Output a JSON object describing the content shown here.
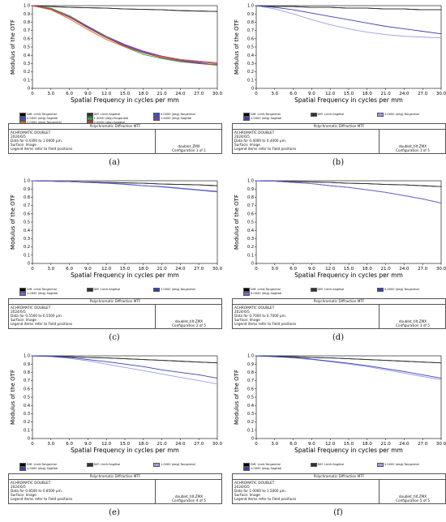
{
  "chart_data": [
    {
      "type": "line",
      "caption": "(a)",
      "xlabel": "Spatial Frequency in cycles per mm",
      "ylabel": "Modulus of the OTF",
      "xlim": [
        0,
        30
      ],
      "ylim": [
        0,
        1
      ],
      "xticks": [
        "0",
        "3.0",
        "6.0",
        "9.0",
        "12.0",
        "15.0",
        "18.0",
        "21.0",
        "24.0",
        "27.0",
        "30.0"
      ],
      "yticks": [
        "0",
        "0.1",
        "0.2",
        "0.3",
        "0.4",
        "0.5",
        "0.6",
        "0.7",
        "0.8",
        "0.9",
        "1.0"
      ],
      "x": [
        0,
        3,
        6,
        9,
        12,
        15,
        18,
        21,
        24,
        27,
        30
      ],
      "series": [
        {
          "name": "Diff. Limit-Tangential",
          "color": "#000000",
          "values": [
            1.0,
            0.99,
            0.98,
            0.975,
            0.97,
            0.96,
            0.955,
            0.95,
            0.94,
            0.935,
            0.93
          ]
        },
        {
          "name": "Diff. Limit-Sagittal",
          "color": "#333333",
          "values": [
            1.0,
            0.99,
            0.98,
            0.975,
            0.97,
            0.96,
            0.955,
            0.95,
            0.94,
            0.935,
            0.93
          ]
        },
        {
          "name": "0.0000 (deg)-Tangential",
          "color": "#3b4fd1",
          "values": [
            1.0,
            0.96,
            0.86,
            0.74,
            0.62,
            0.52,
            0.44,
            0.38,
            0.34,
            0.31,
            0.28
          ]
        },
        {
          "name": "0.0000 (deg)-Sagittal",
          "color": "#3b4fd1",
          "values": [
            1.0,
            0.96,
            0.86,
            0.74,
            0.62,
            0.52,
            0.44,
            0.38,
            0.34,
            0.31,
            0.28
          ]
        },
        {
          "name": "1.4000 (deg)-Tangential",
          "color": "#2fa24a",
          "values": [
            1.0,
            0.97,
            0.88,
            0.75,
            0.62,
            0.5,
            0.41,
            0.36,
            0.32,
            0.3,
            0.29
          ]
        },
        {
          "name": "1.4000 (deg)-Sagittal",
          "color": "#7b3fb0",
          "values": [
            1.0,
            0.96,
            0.87,
            0.75,
            0.63,
            0.53,
            0.45,
            0.39,
            0.35,
            0.32,
            0.3
          ]
        },
        {
          "name": "2.0000 (deg)-Tangential",
          "color": "#e0681a",
          "values": [
            1.0,
            0.95,
            0.84,
            0.71,
            0.59,
            0.5,
            0.43,
            0.38,
            0.35,
            0.33,
            0.31
          ]
        },
        {
          "name": "2.0000 (deg)-Sagittal",
          "color": "#c63a2f",
          "values": [
            1.0,
            0.96,
            0.86,
            0.73,
            0.61,
            0.51,
            0.43,
            0.37,
            0.33,
            0.3,
            0.28
          ]
        }
      ],
      "info": {
        "title": "Polychromatic Diffraction MTF",
        "lines": [
          "ACHROMATIC DOUBLET",
          "2024/6/5",
          "Data for 0.4300 to 1.0000 µm.",
          "Surface: Image"
        ],
        "legend_note": "Legend items refer to Field positions",
        "file": "doublet_ZMX",
        "config": "Configuration 1 of 1"
      }
    },
    {
      "type": "line",
      "caption": "(b)",
      "xlabel": "Spatial Frequency in cycles per mm",
      "ylabel": "Modulus of the OTF",
      "xlim": [
        0,
        30
      ],
      "ylim": [
        0,
        1
      ],
      "xticks": [
        "0",
        "3.0",
        "6.0",
        "9.0",
        "12.0",
        "15.0",
        "18.0",
        "21.0",
        "24.0",
        "27.0",
        "30.0"
      ],
      "yticks": [
        "0",
        "0.1",
        "0.2",
        "0.3",
        "0.4",
        "0.5",
        "0.6",
        "0.7",
        "0.8",
        "0.9",
        "1.0"
      ],
      "x": [
        0,
        3,
        6,
        9,
        12,
        15,
        18,
        21,
        24,
        27,
        30
      ],
      "series": [
        {
          "name": "Diff. Limit-Tangential",
          "color": "#000000",
          "values": [
            1.0,
            0.99,
            0.99,
            0.98,
            0.98,
            0.97,
            0.97,
            0.96,
            0.96,
            0.95,
            0.95
          ]
        },
        {
          "name": "Diff. Limit-Sagittal",
          "color": "#333333",
          "values": [
            1.0,
            0.99,
            0.99,
            0.98,
            0.98,
            0.97,
            0.97,
            0.96,
            0.96,
            0.95,
            0.95
          ]
        },
        {
          "name": "2.0000 (deg)-Tangential",
          "color": "#9a9ce8",
          "values": [
            1.0,
            0.96,
            0.9,
            0.83,
            0.77,
            0.72,
            0.68,
            0.65,
            0.63,
            0.62,
            0.61
          ]
        },
        {
          "name": "2.0000 (deg)-Sagittal",
          "color": "#3b3fb0",
          "values": [
            1.0,
            0.98,
            0.95,
            0.91,
            0.87,
            0.83,
            0.79,
            0.75,
            0.72,
            0.69,
            0.66
          ]
        }
      ],
      "info": {
        "title": "Polychromatic Diffraction MTF",
        "lines": [
          "ACHROMATIC DOUBLET",
          "2024/6/5",
          "Data for 0.4000 to 0.4000 µm.",
          "Surface: Image"
        ],
        "legend_note": "Legend items refer to Field positions",
        "file": "doublet_tilt.ZMX",
        "config": "Configuration 1 of 5"
      }
    },
    {
      "type": "line",
      "caption": "(c)",
      "xlabel": "Spatial Frequency in cycles per mm",
      "ylabel": "Modulus of the OTF",
      "xlim": [
        0,
        30
      ],
      "ylim": [
        0,
        1
      ],
      "xticks": [
        "0",
        "3.0",
        "6.0",
        "9.0",
        "12.0",
        "15.0",
        "18.0",
        "21.0",
        "24.0",
        "27.0",
        "30.0"
      ],
      "yticks": [
        "0",
        "0.1",
        "0.2",
        "0.3",
        "0.4",
        "0.5",
        "0.6",
        "0.7",
        "0.8",
        "0.9",
        "1.0"
      ],
      "x": [
        0,
        3,
        6,
        9,
        12,
        15,
        18,
        21,
        24,
        27,
        30
      ],
      "series": [
        {
          "name": "Diff. Limit-Tangential",
          "color": "#000000",
          "values": [
            1.0,
            0.995,
            0.99,
            0.985,
            0.98,
            0.975,
            0.97,
            0.96,
            0.955,
            0.95,
            0.94
          ]
        },
        {
          "name": "Diff. Limit-Sagittal",
          "color": "#333333",
          "values": [
            1.0,
            0.995,
            0.99,
            0.985,
            0.98,
            0.975,
            0.97,
            0.96,
            0.955,
            0.95,
            0.94
          ]
        },
        {
          "name": "1.0000 (deg)-Tangential",
          "color": "#3b3fb0",
          "values": [
            1.0,
            0.995,
            0.99,
            0.98,
            0.97,
            0.96,
            0.94,
            0.93,
            0.91,
            0.89,
            0.87
          ]
        },
        {
          "name": "1.0000 (deg)-Sagittal",
          "color": "#6a6ad6",
          "values": [
            1.0,
            0.995,
            0.99,
            0.98,
            0.97,
            0.955,
            0.94,
            0.925,
            0.905,
            0.885,
            0.865
          ]
        }
      ],
      "info": {
        "title": "Polychromatic Diffraction MTF",
        "lines": [
          "ACHROMATIC DOUBLET",
          "2024/6/5",
          "Data for 0.5500 to 0.5500 µm.",
          "Surface: Image"
        ],
        "legend_note": "Legend items refer to Field positions",
        "file": "doublet_tilt.ZMX",
        "config": "Configuration 2 of 5"
      }
    },
    {
      "type": "line",
      "caption": "(d)",
      "xlabel": "Spatial Frequency in cycles per mm",
      "ylabel": "Modulus of the OTF",
      "xlim": [
        0,
        30
      ],
      "ylim": [
        0,
        1
      ],
      "xticks": [
        "0",
        "3.0",
        "6.0",
        "9.0",
        "12.0",
        "15.0",
        "18.0",
        "21.0",
        "24.0",
        "27.0",
        "30.0"
      ],
      "yticks": [
        "0",
        "0.1",
        "0.2",
        "0.3",
        "0.4",
        "0.5",
        "0.6",
        "0.7",
        "0.8",
        "0.9",
        "1.0"
      ],
      "x": [
        0,
        3,
        6,
        9,
        12,
        15,
        18,
        21,
        24,
        27,
        30
      ],
      "series": [
        {
          "name": "Diff. Limit-Tangential",
          "color": "#000000",
          "values": [
            1.0,
            0.995,
            0.99,
            0.985,
            0.98,
            0.97,
            0.965,
            0.955,
            0.95,
            0.94,
            0.93
          ]
        },
        {
          "name": "Diff. Limit-Sagittal",
          "color": "#333333",
          "values": [
            1.0,
            0.995,
            0.99,
            0.985,
            0.98,
            0.97,
            0.965,
            0.955,
            0.95,
            0.94,
            0.93
          ]
        },
        {
          "name": "0.0000 (deg)-Tangential",
          "color": "#3b3fb0",
          "values": [
            1.0,
            0.995,
            0.98,
            0.965,
            0.94,
            0.92,
            0.89,
            0.86,
            0.82,
            0.78,
            0.73
          ]
        },
        {
          "name": "0.0000 (deg)-Sagittal",
          "color": "#6a6ad6",
          "values": [
            1.0,
            0.995,
            0.98,
            0.965,
            0.94,
            0.92,
            0.89,
            0.86,
            0.82,
            0.78,
            0.73
          ]
        }
      ],
      "info": {
        "title": "Polychromatic Diffraction MTF",
        "lines": [
          "ACHROMATIC DOUBLET",
          "2024/6/5",
          "Data for 0.7000 to 0.7000 µm.",
          "Surface: Image"
        ],
        "legend_note": "Legend items refer to Field positions",
        "file": "doublet_tilt.ZMX",
        "config": "Configuration 3 of 5"
      }
    },
    {
      "type": "line",
      "caption": "(e)",
      "xlabel": "Spatial Frequency in cycles per mm",
      "ylabel": "Modulus of the OTF",
      "xlim": [
        0,
        30
      ],
      "ylim": [
        0,
        1
      ],
      "xticks": [
        "0",
        "3.0",
        "6.0",
        "9.0",
        "12.0",
        "15.0",
        "18.0",
        "21.0",
        "24.0",
        "27.0",
        "30.0"
      ],
      "yticks": [
        "0",
        "0.1",
        "0.2",
        "0.3",
        "0.4",
        "0.5",
        "0.6",
        "0.7",
        "0.8",
        "0.9",
        "1.0"
      ],
      "x": [
        0,
        3,
        6,
        9,
        12,
        15,
        18,
        21,
        24,
        27,
        30
      ],
      "series": [
        {
          "name": "Diff. Limit-Tangential",
          "color": "#000000",
          "values": [
            1.0,
            0.995,
            0.99,
            0.98,
            0.975,
            0.965,
            0.955,
            0.945,
            0.935,
            0.925,
            0.915
          ]
        },
        {
          "name": "Diff. Limit-Sagittal",
          "color": "#333333",
          "values": [
            1.0,
            0.995,
            0.99,
            0.98,
            0.975,
            0.965,
            0.955,
            0.945,
            0.935,
            0.925,
            0.915
          ]
        },
        {
          "name": "1.0000 (deg)-Tangential",
          "color": "#9a9ce8",
          "values": [
            1.0,
            0.99,
            0.97,
            0.94,
            0.9,
            0.86,
            0.82,
            0.78,
            0.74,
            0.7,
            0.66
          ]
        },
        {
          "name": "1.0000 (deg)-Sagittal",
          "color": "#3b3fb0",
          "values": [
            1.0,
            0.995,
            0.98,
            0.955,
            0.93,
            0.9,
            0.87,
            0.83,
            0.8,
            0.77,
            0.73
          ]
        }
      ],
      "info": {
        "title": "Polychromatic Diffraction MTF",
        "lines": [
          "ACHROMATIC DOUBLET",
          "2024/6/5",
          "Data for 0.8500 to 0.8500 µm.",
          "Surface: Image"
        ],
        "legend_note": "Legend items refer to Field positions",
        "file": "doublet_tilt.ZMX",
        "config": "Configuration 4 of 5"
      }
    },
    {
      "type": "line",
      "caption": "(f)",
      "xlabel": "Spatial Frequency in cycles per mm",
      "ylabel": "Modulus of the OTF",
      "xlim": [
        0,
        30
      ],
      "ylim": [
        0,
        1
      ],
      "xticks": [
        "0",
        "3.0",
        "6.0",
        "9.0",
        "12.0",
        "15.0",
        "18.0",
        "21.0",
        "24.0",
        "27.0",
        "30.0"
      ],
      "yticks": [
        "0",
        "0.1",
        "0.2",
        "0.3",
        "0.4",
        "0.5",
        "0.6",
        "0.7",
        "0.8",
        "0.9",
        "1.0"
      ],
      "x": [
        0,
        3,
        6,
        9,
        12,
        15,
        18,
        21,
        24,
        27,
        30
      ],
      "series": [
        {
          "name": "Diff. Limit-Tangential",
          "color": "#000000",
          "values": [
            1.0,
            0.995,
            0.99,
            0.98,
            0.975,
            0.965,
            0.955,
            0.945,
            0.935,
            0.925,
            0.915
          ]
        },
        {
          "name": "Diff. Limit-Sagittal",
          "color": "#333333",
          "values": [
            1.0,
            0.995,
            0.99,
            0.98,
            0.975,
            0.965,
            0.955,
            0.945,
            0.935,
            0.925,
            0.915
          ]
        },
        {
          "name": "2.0000 (deg)-Tangential",
          "color": "#9a9ce8",
          "values": [
            1.0,
            0.99,
            0.975,
            0.955,
            0.93,
            0.9,
            0.87,
            0.83,
            0.79,
            0.75,
            0.71
          ]
        },
        {
          "name": "2.0000 (deg)-Sagittal",
          "color": "#3b3fb0",
          "values": [
            1.0,
            0.99,
            0.98,
            0.96,
            0.935,
            0.91,
            0.88,
            0.845,
            0.81,
            0.77,
            0.73
          ]
        }
      ],
      "info": {
        "title": "Polychromatic Diffraction MTF",
        "lines": [
          "ACHROMATIC DOUBLET",
          "2024/6/5",
          "Data for 1.0000 to 1.5000 µm.",
          "Surface: Image"
        ],
        "legend_note": "Legend items refer to Field positions",
        "file": "doublet_tilt.ZMX",
        "config": "Configuration 5 of 5"
      }
    }
  ]
}
